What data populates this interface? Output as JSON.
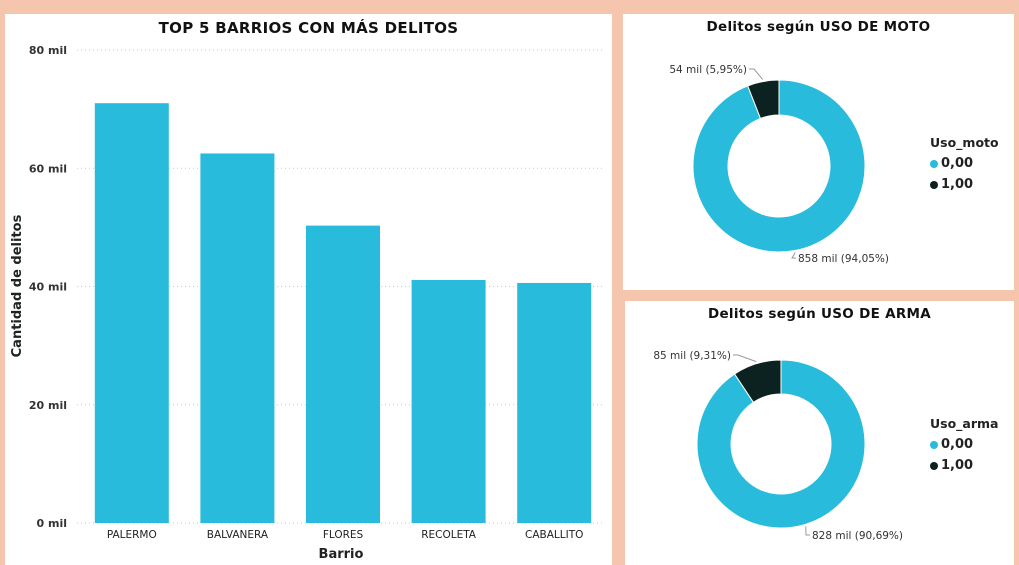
{
  "colors": {
    "background": "#f5c5ad",
    "cyan": "#29bbdb",
    "dark": "#0b2220"
  },
  "chart_data": [
    {
      "type": "bar",
      "title": "TOP 5 BARRIOS CON MÁS DELITOS",
      "xlabel": "Barrio",
      "ylabel": "Cantidad de delitos",
      "categories": [
        "PALERMO",
        "BALVANERA",
        "FLORES",
        "RECOLETA",
        "CABALLITO"
      ],
      "values": [
        71000,
        62500,
        50300,
        41100,
        40600
      ],
      "ylim": [
        0,
        80000
      ],
      "yticks": [
        0,
        20000,
        40000,
        60000,
        80000
      ],
      "ytick_labels": [
        "0 mil",
        "20 mil",
        "40 mil",
        "60 mil",
        "80 mil"
      ],
      "grid": true,
      "color": "#29bbdb"
    },
    {
      "type": "pie",
      "variant": "donut",
      "title": "Delitos según USO DE MOTO",
      "legend_title": "Uso_moto",
      "legend_position": "right",
      "labels": [
        "0,00",
        "1,00"
      ],
      "values": [
        858000,
        54000
      ],
      "percent": [
        94.05,
        5.95
      ],
      "data_labels": [
        "858 mil (94,05%)",
        "54 mil (5,95%)"
      ],
      "colors": [
        "#29bbdb",
        "#0b2220"
      ]
    },
    {
      "type": "pie",
      "variant": "donut",
      "title": "Delitos según USO DE ARMA",
      "legend_title": "Uso_arma",
      "legend_position": "right",
      "labels": [
        "0,00",
        "1,00"
      ],
      "values": [
        828000,
        85000
      ],
      "percent": [
        90.69,
        9.31
      ],
      "data_labels": [
        "828 mil (90,69%)",
        "85 mil (9,31%)"
      ],
      "colors": [
        "#29bbdb",
        "#0b2220"
      ]
    }
  ]
}
